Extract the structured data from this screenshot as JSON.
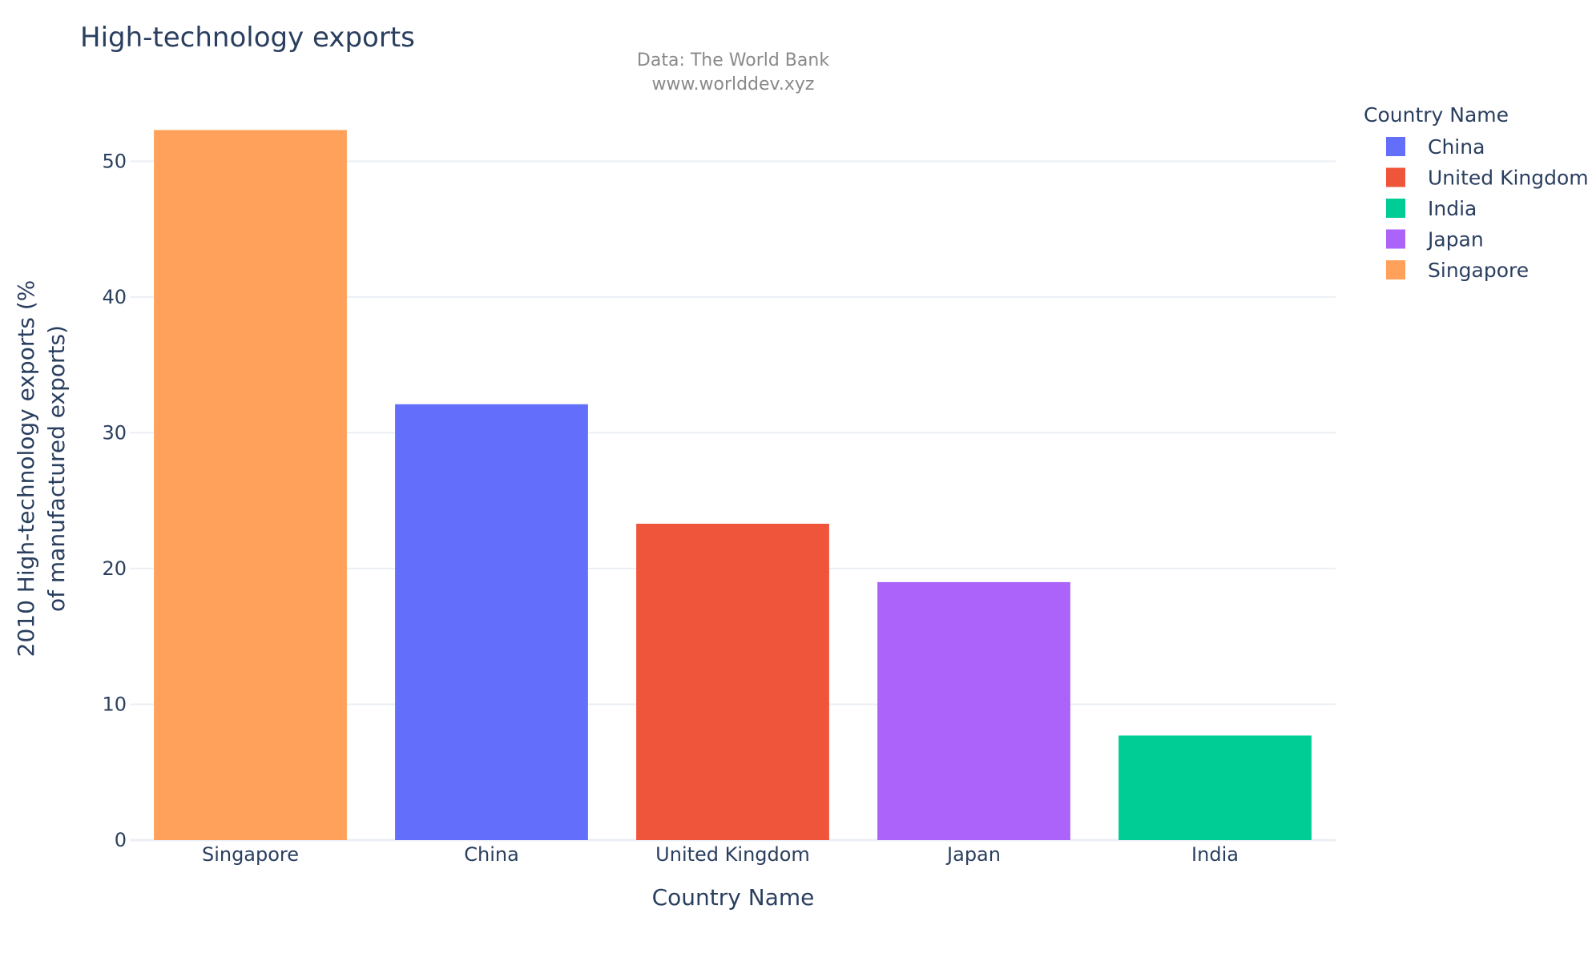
{
  "chart_data": {
    "type": "bar",
    "title": "High-technology exports",
    "subtitle_lines": [
      "Data: The World Bank",
      "www.worlddev.xyz"
    ],
    "xlabel": "Country Name",
    "ylabel_lines": [
      "2010 High-technology exports (%",
      "of manufactured exports)"
    ],
    "categories": [
      "Singapore",
      "China",
      "United Kingdom",
      "Japan",
      "India"
    ],
    "values": [
      52.3,
      32.1,
      23.3,
      19.0,
      7.7
    ],
    "bar_colors": [
      "#ffa15a",
      "#636efa",
      "#ef553b",
      "#ab63fa",
      "#00cc96"
    ],
    "ylim": [
      0,
      53.5
    ],
    "yticks": [
      0,
      10,
      20,
      30,
      40,
      50
    ],
    "grid": true,
    "legend": {
      "title": "Country Name",
      "placement": "top-right",
      "items": [
        {
          "label": "China",
          "color": "#636efa"
        },
        {
          "label": "United Kingdom",
          "color": "#ef553b"
        },
        {
          "label": "India",
          "color": "#00cc96"
        },
        {
          "label": "Japan",
          "color": "#ab63fa"
        },
        {
          "label": "Singapore",
          "color": "#ffa15a"
        }
      ]
    }
  }
}
